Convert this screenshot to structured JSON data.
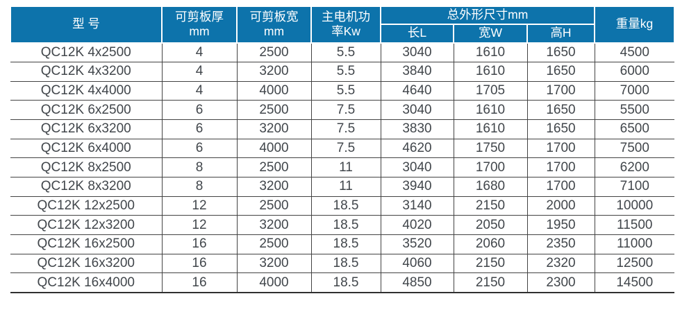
{
  "table": {
    "headers": {
      "model": "型 号",
      "thickness_line1": "可剪板厚",
      "thickness_line2": "mm",
      "plate_width_line1": "可剪板宽",
      "plate_width_line2": "mm",
      "power_line1": "主电机功",
      "power_line2": "率Kw",
      "dimensions_group": "总外形尺寸mm",
      "length": "长L",
      "width": "宽W",
      "height": "高H",
      "weight": "重量kg"
    },
    "rows": [
      {
        "model": "QC12K 4x2500",
        "thickness": "4",
        "plate_width": "2500",
        "power": "5.5",
        "length": "3040",
        "width": "1610",
        "height": "1650",
        "weight": "4500"
      },
      {
        "model": "QC12K 4x3200",
        "thickness": "4",
        "plate_width": "3200",
        "power": "5.5",
        "length": "3840",
        "width": "1610",
        "height": "1650",
        "weight": "6000"
      },
      {
        "model": "QC12K 4x4000",
        "thickness": "4",
        "plate_width": "4000",
        "power": "5.5",
        "length": "4640",
        "width": "1705",
        "height": "1700",
        "weight": "7000"
      },
      {
        "model": "QC12K 6x2500",
        "thickness": "6",
        "plate_width": "2500",
        "power": "7.5",
        "length": "3040",
        "width": "1610",
        "height": "1650",
        "weight": "5500"
      },
      {
        "model": "QC12K 6x3200",
        "thickness": "6",
        "plate_width": "3200",
        "power": "7.5",
        "length": "3830",
        "width": "1610",
        "height": "1650",
        "weight": "6500"
      },
      {
        "model": "QC12K 6x4000",
        "thickness": "6",
        "plate_width": "4000",
        "power": "7.5",
        "length": "4620",
        "width": "1750",
        "height": "1700",
        "weight": "7500"
      },
      {
        "model": "QC12K 8x2500",
        "thickness": "8",
        "plate_width": "2500",
        "power": "11",
        "length": "3040",
        "width": "1700",
        "height": "1700",
        "weight": "6200"
      },
      {
        "model": "QC12K 8x3200",
        "thickness": "8",
        "plate_width": "3200",
        "power": "11",
        "length": "3940",
        "width": "1680",
        "height": "1700",
        "weight": "7100"
      },
      {
        "model": "QC12K 12x2500",
        "thickness": "12",
        "plate_width": "2500",
        "power": "18.5",
        "length": "3140",
        "width": "2150",
        "height": "2000",
        "weight": "10000"
      },
      {
        "model": "QC12K 12x3200",
        "thickness": "12",
        "plate_width": "3200",
        "power": "18.5",
        "length": "4020",
        "width": "2050",
        "height": "1950",
        "weight": "11500"
      },
      {
        "model": "QC12K 16x2500",
        "thickness": "16",
        "plate_width": "2500",
        "power": "18.5",
        "length": "3520",
        "width": "2060",
        "height": "2350",
        "weight": "11000"
      },
      {
        "model": "QC12K 16x3200",
        "thickness": "16",
        "plate_width": "3200",
        "power": "18.5",
        "length": "4060",
        "width": "2150",
        "height": "2320",
        "weight": "12500"
      },
      {
        "model": "QC12K 16x4000",
        "thickness": "16",
        "plate_width": "4000",
        "power": "18.5",
        "length": "4850",
        "width": "2150",
        "height": "2300",
        "weight": "14500"
      }
    ],
    "colors": {
      "header_bg": "#0d73ab",
      "header_text": "#ffffff",
      "body_text": "#41464b",
      "grid_line": "#424242"
    }
  }
}
